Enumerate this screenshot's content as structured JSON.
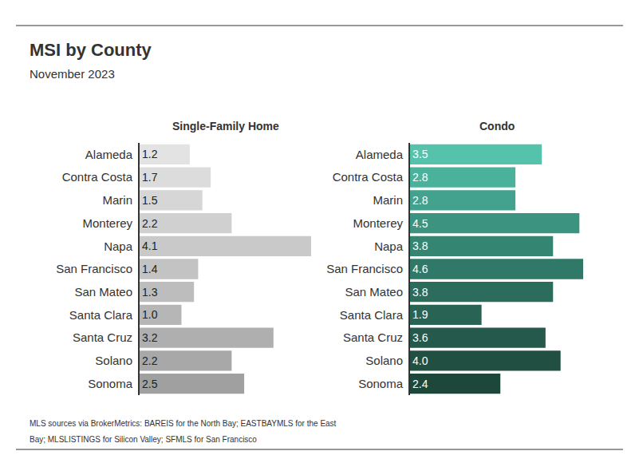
{
  "title": "MSI by County",
  "subtitle": "November 2023",
  "note": [
    "MLS sources via BrokerMetrics: BAREIS for the North Bay; EASTBAYMLS for the East",
    "Bay; MLSLISTINGS for Silicon Valley; SFMLS for San Francisco"
  ],
  "chart_data": [
    {
      "type": "bar",
      "title": "Single-Family Home",
      "orientation": "horizontal",
      "categories": [
        "Alameda",
        "Contra Costa",
        "Marin",
        "Monterey",
        "Napa",
        "San Francisco",
        "San Mateo",
        "Santa Clara",
        "Santa Cruz",
        "Solano",
        "Sonoma"
      ],
      "values": [
        1.2,
        1.7,
        1.5,
        2.2,
        4.1,
        1.4,
        1.3,
        1.0,
        3.2,
        2.2,
        2.5
      ],
      "value_labels": [
        "1.2",
        "1.7",
        "1.5",
        "2.2",
        "4.1",
        "1.4",
        "1.3",
        "1.0",
        "3.2",
        "2.2",
        "2.5"
      ],
      "colors": [
        "#e3e3e3",
        "#dcdcdc",
        "#d6d6d6",
        "#d0d0d0",
        "#c9c9c9",
        "#c3c3c3",
        "#bdbdbd",
        "#b6b6b6",
        "#afafaf",
        "#a8a8a8",
        "#a0a0a0"
      ],
      "xlim": [
        0,
        4.1
      ],
      "data_labels": true,
      "tick_labels": "y",
      "grid": false
    },
    {
      "type": "bar",
      "title": "Condo",
      "orientation": "horizontal",
      "categories": [
        "Alameda",
        "Contra Costa",
        "Marin",
        "Monterey",
        "Napa",
        "San Francisco",
        "San Mateo",
        "Santa Clara",
        "Santa Cruz",
        "Solano",
        "Sonoma"
      ],
      "values": [
        3.5,
        2.8,
        2.8,
        4.5,
        3.8,
        4.6,
        3.8,
        1.9,
        3.6,
        4.0,
        2.4
      ],
      "value_labels": [
        "3.5",
        "2.8",
        "2.8",
        "4.5",
        "3.8",
        "4.6",
        "3.8",
        "1.9",
        "3.6",
        "4.0",
        "2.4"
      ],
      "colors": [
        "#55c2ab",
        "#4ab19b",
        "#42a28d",
        "#3b9380",
        "#358573",
        "#307867",
        "#2b6c5d",
        "#286353",
        "#25594b",
        "#215043",
        "#1e473b"
      ],
      "xlim": [
        0,
        4.6
      ],
      "data_labels": true,
      "tick_labels": "y",
      "grid": false
    }
  ]
}
